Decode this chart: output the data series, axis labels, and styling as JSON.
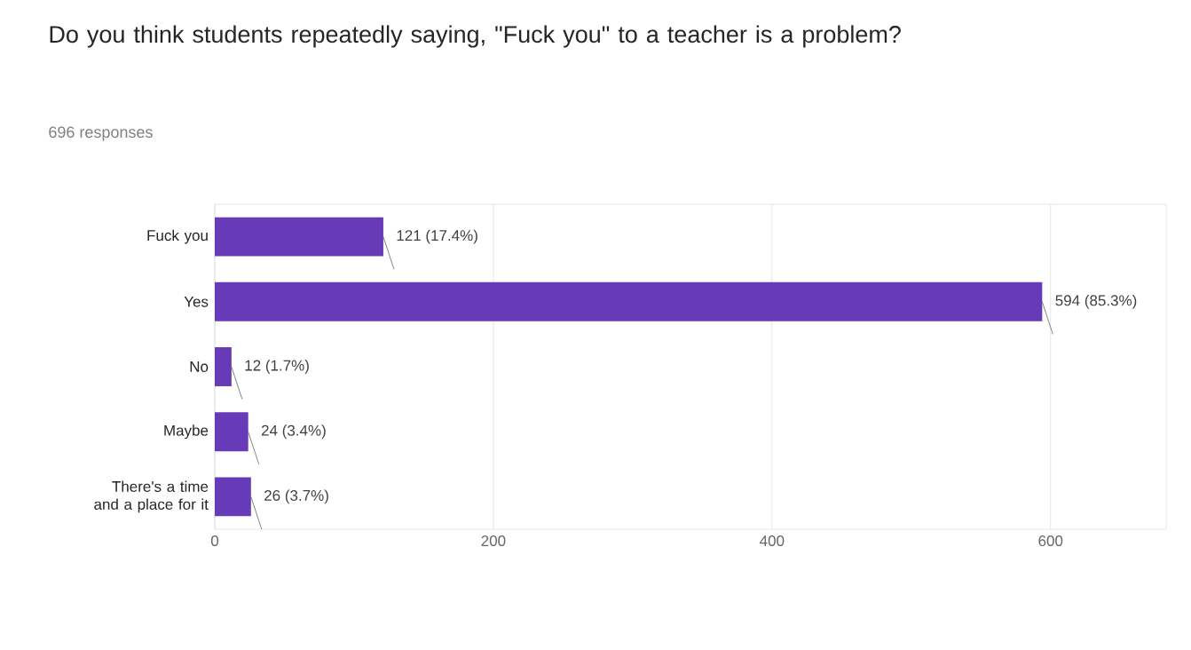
{
  "chart_data": {
    "type": "bar",
    "orientation": "horizontal",
    "title": "Do you think students repeatedly saying, \"Fuck you\" to a teacher is a problem?",
    "subtitle": "696 responses",
    "categories": [
      "Fuck you",
      "Yes",
      "No",
      "Maybe",
      "There's a time and a place for it"
    ],
    "values": [
      121,
      594,
      12,
      24,
      26
    ],
    "value_labels": [
      "121 (17.4%)",
      "594 (85.3%)",
      "12 (1.7%)",
      "24 (3.4%)",
      "26 (3.7%)"
    ],
    "color": "#673ab7",
    "xlim": [
      0,
      683
    ],
    "xticks": [
      0,
      200,
      400,
      600
    ],
    "grid": "x"
  }
}
